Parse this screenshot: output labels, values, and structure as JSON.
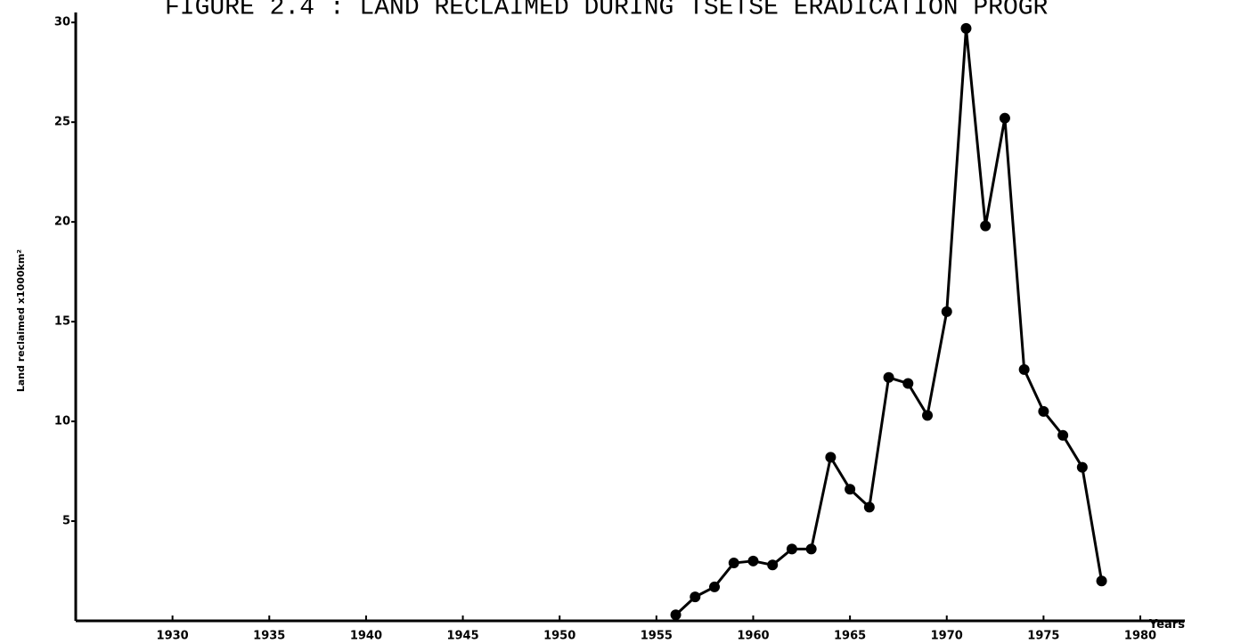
{
  "chart_data": {
    "type": "line",
    "title": "FIGURE 2.4 : LAND RECLAIMED DURING TSETSE ERADICATION PROGR",
    "x_label": "Years",
    "y_label": "Land reclaimed x1000km²",
    "x": [
      1956,
      1957,
      1958,
      1959,
      1960,
      1961,
      1962,
      1963,
      1964,
      1965,
      1966,
      1967,
      1968,
      1969,
      1970,
      1971,
      1972,
      1973,
      1974,
      1975,
      1976,
      1977,
      1978
    ],
    "series": [
      {
        "name": "Land reclaimed",
        "color": "#000000",
        "values": [
          0.3,
          1.2,
          1.7,
          2.9,
          3.0,
          2.8,
          3.6,
          3.6,
          8.2,
          6.6,
          5.7,
          12.2,
          11.9,
          10.3,
          15.5,
          29.7,
          19.8,
          25.2,
          12.6,
          10.5,
          9.3,
          7.7,
          2.0
        ]
      }
    ],
    "xlim": [
      1925,
      1982.3
    ],
    "ylim": [
      0,
      30.5
    ],
    "xticks": [
      1930,
      1935,
      1940,
      1945,
      1950,
      1955,
      1960,
      1965,
      1970,
      1975,
      1980
    ],
    "yticks": [
      5,
      10,
      15,
      20,
      25,
      30
    ],
    "grid": false
  }
}
